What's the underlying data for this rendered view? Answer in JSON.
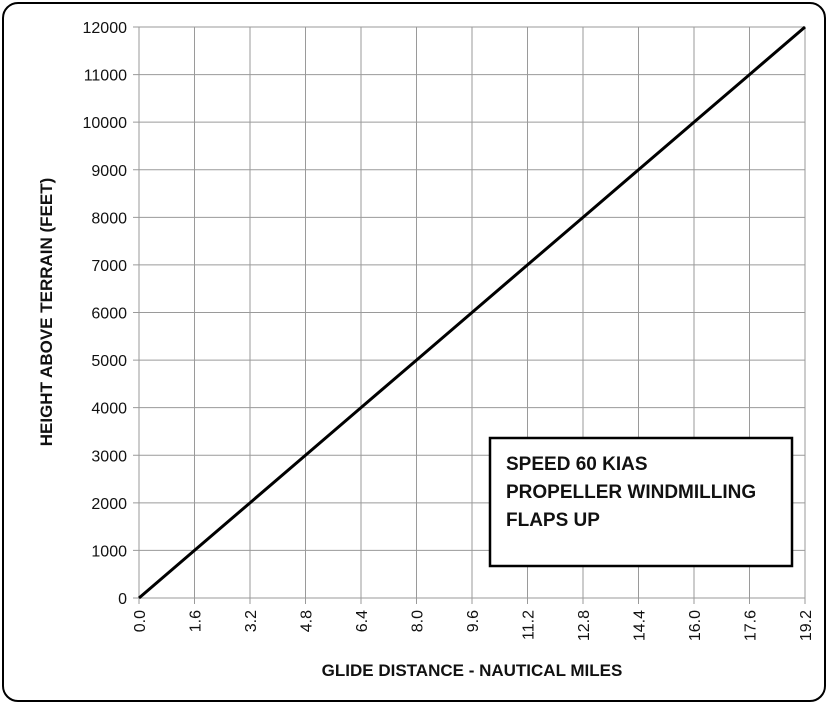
{
  "chart_data": {
    "type": "line",
    "title": "",
    "xlabel": "GLIDE DISTANCE - NAUTICAL MILES",
    "ylabel": "HEIGHT ABOVE TERRAIN (FEET)",
    "xlim": [
      0,
      19.2
    ],
    "ylim": [
      0,
      12000
    ],
    "grid": true,
    "x_ticks": [
      "0.0",
      "1.6",
      "3.2",
      "4.8",
      "6.4",
      "8.0",
      "9.6",
      "11.2",
      "12.8",
      "14.4",
      "16.0",
      "17.6",
      "19.2"
    ],
    "y_ticks": [
      "0",
      "1000",
      "2000",
      "3000",
      "4000",
      "5000",
      "6000",
      "7000",
      "8000",
      "9000",
      "10000",
      "11000",
      "12000"
    ],
    "series": [
      {
        "x": [
          0.0,
          1.6,
          3.2,
          4.8,
          6.4,
          8.0,
          9.6,
          11.2,
          12.8,
          14.4,
          16.0,
          17.6,
          19.2
        ],
        "y": [
          0,
          1000,
          2000,
          3000,
          4000,
          5000,
          6000,
          7000,
          8000,
          9000,
          10000,
          11000,
          12000
        ],
        "color": "#000000"
      }
    ],
    "annotation_lines": [
      "SPEED 60 KIAS",
      "PROPELLER WINDMILLING",
      "FLAPS UP"
    ],
    "annotation_position": "bottom-right"
  }
}
